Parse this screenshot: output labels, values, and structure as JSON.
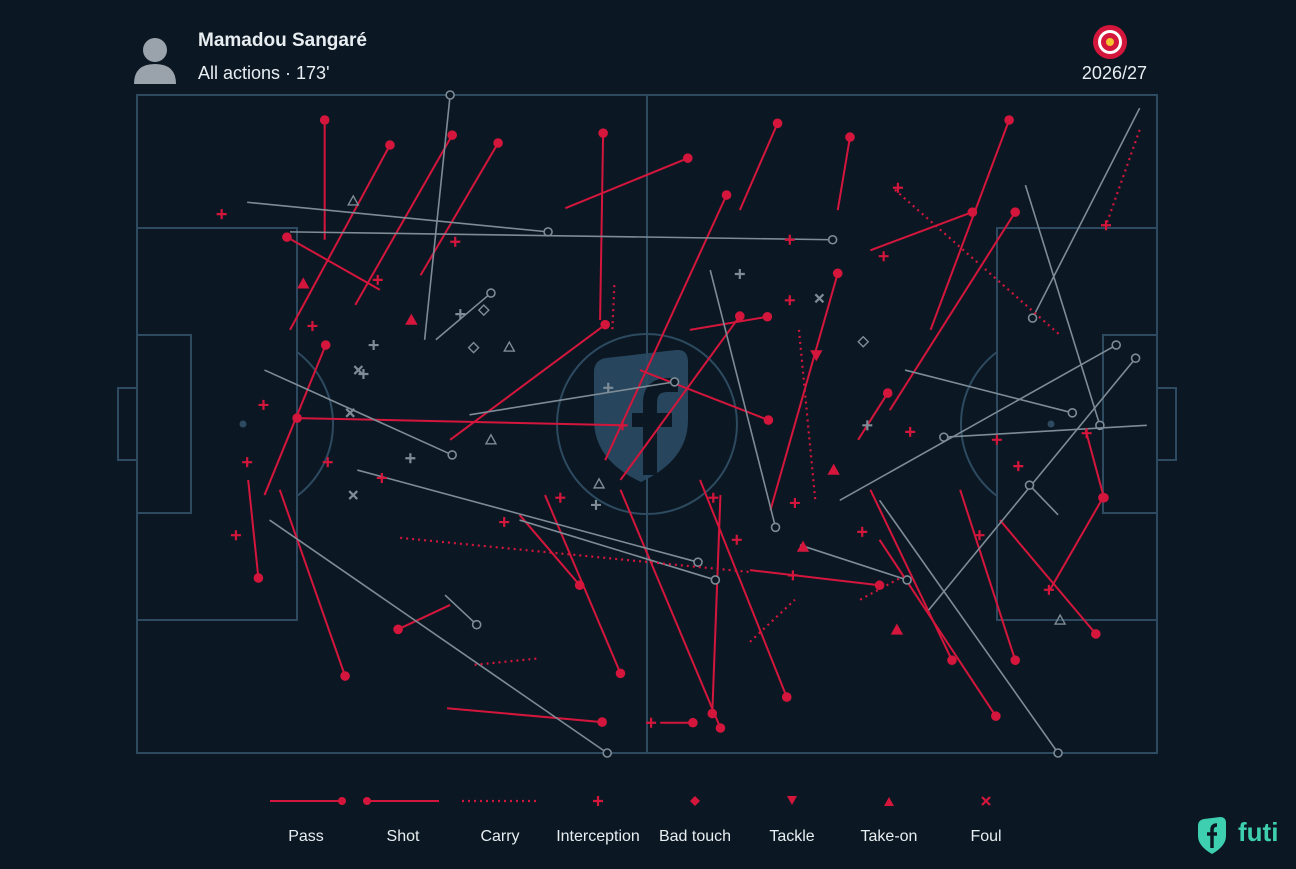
{
  "header": {
    "name": "Mamadou Sangaré",
    "subtitle": "All actions · 173'",
    "season": "2026/27"
  },
  "pitch": {
    "xlim": [
      0,
      100
    ],
    "ylim": [
      0,
      100
    ]
  },
  "colors": {
    "successful": "#d4163c",
    "unsuccessful": "#7e8c97"
  },
  "actions": [
    {
      "type": "pass",
      "x": 18.4,
      "y": 22.0,
      "end_x": 18.4,
      "end_y": 3.8,
      "successful": true
    },
    {
      "type": "pass",
      "x": 15.0,
      "y": 35.7,
      "end_x": 24.8,
      "end_y": 7.6,
      "successful": true
    },
    {
      "type": "pass",
      "x": 21.4,
      "y": 31.9,
      "end_x": 30.9,
      "end_y": 6.1,
      "successful": true
    },
    {
      "type": "pass",
      "x": 27.8,
      "y": 27.4,
      "end_x": 35.4,
      "end_y": 7.3,
      "successful": true
    },
    {
      "type": "pass",
      "x": 45.4,
      "y": 34.2,
      "end_x": 45.7,
      "end_y": 5.8,
      "successful": true
    },
    {
      "type": "pass",
      "x": 42.0,
      "y": 17.2,
      "end_x": 54.0,
      "end_y": 9.6,
      "successful": true
    },
    {
      "type": "pass",
      "x": 59.1,
      "y": 17.5,
      "end_x": 62.8,
      "end_y": 4.3,
      "successful": true
    },
    {
      "type": "pass",
      "x": 68.7,
      "y": 17.5,
      "end_x": 69.9,
      "end_y": 6.4,
      "successful": true
    },
    {
      "type": "pass",
      "x": 77.8,
      "y": 35.7,
      "end_x": 85.5,
      "end_y": 3.8,
      "successful": true
    },
    {
      "type": "pass",
      "x": 71.9,
      "y": 23.6,
      "end_x": 81.9,
      "end_y": 17.8,
      "successful": true
    },
    {
      "type": "pass",
      "x": 23.8,
      "y": 29.6,
      "end_x": 14.7,
      "end_y": 21.6,
      "successful": true
    },
    {
      "type": "pass",
      "x": 12.5,
      "y": 60.8,
      "end_x": 18.5,
      "end_y": 38.0,
      "successful": true
    },
    {
      "type": "pass",
      "x": 48.1,
      "y": 50.2,
      "end_x": 15.7,
      "end_y": 49.1,
      "successful": true
    },
    {
      "type": "pass",
      "x": 30.7,
      "y": 52.4,
      "end_x": 45.9,
      "end_y": 34.9,
      "successful": true
    },
    {
      "type": "pass",
      "x": 10.9,
      "y": 58.5,
      "end_x": 11.9,
      "end_y": 73.4,
      "successful": true
    },
    {
      "type": "pass",
      "x": 14.0,
      "y": 60.0,
      "end_x": 20.4,
      "end_y": 88.3,
      "successful": true
    },
    {
      "type": "pass",
      "x": 30.7,
      "y": 77.5,
      "end_x": 25.6,
      "end_y": 81.2,
      "successful": true
    },
    {
      "type": "pass",
      "x": 30.4,
      "y": 93.2,
      "end_x": 45.6,
      "end_y": 95.3,
      "successful": true
    },
    {
      "type": "pass",
      "x": 51.3,
      "y": 95.4,
      "end_x": 54.5,
      "end_y": 95.4,
      "successful": true
    },
    {
      "type": "pass",
      "x": 40.0,
      "y": 60.8,
      "end_x": 47.4,
      "end_y": 87.9,
      "successful": true
    },
    {
      "type": "pass",
      "x": 47.4,
      "y": 60.0,
      "end_x": 57.2,
      "end_y": 96.2,
      "successful": true
    },
    {
      "type": "pass",
      "x": 55.2,
      "y": 58.5,
      "end_x": 63.7,
      "end_y": 91.5,
      "successful": true
    },
    {
      "type": "pass",
      "x": 54.2,
      "y": 35.7,
      "end_x": 61.8,
      "end_y": 33.7,
      "successful": true
    },
    {
      "type": "pass",
      "x": 57.2,
      "y": 60.8,
      "end_x": 56.4,
      "end_y": 94.0,
      "successful": true
    },
    {
      "type": "pass",
      "x": 60.1,
      "y": 72.2,
      "end_x": 72.8,
      "end_y": 74.5,
      "successful": true
    },
    {
      "type": "pass",
      "x": 71.9,
      "y": 60.0,
      "end_x": 79.9,
      "end_y": 85.9,
      "successful": true
    },
    {
      "type": "pass",
      "x": 72.8,
      "y": 67.6,
      "end_x": 84.2,
      "end_y": 94.4,
      "successful": true
    },
    {
      "type": "pass",
      "x": 80.7,
      "y": 60.0,
      "end_x": 86.1,
      "end_y": 85.9,
      "successful": true
    },
    {
      "type": "pass",
      "x": 84.6,
      "y": 64.6,
      "end_x": 94.0,
      "end_y": 81.9,
      "successful": true
    },
    {
      "type": "pass",
      "x": 93.0,
      "y": 50.9,
      "end_x": 94.8,
      "end_y": 61.2,
      "successful": true
    },
    {
      "type": "pass",
      "x": 89.5,
      "y": 75.2,
      "end_x": 94.7,
      "end_y": 61.2,
      "successful": true
    },
    {
      "type": "pass",
      "x": 73.8,
      "y": 47.9,
      "end_x": 86.1,
      "end_y": 17.8,
      "successful": true
    },
    {
      "type": "pass",
      "x": 70.7,
      "y": 52.4,
      "end_x": 73.6,
      "end_y": 45.3,
      "successful": true
    },
    {
      "type": "pass",
      "x": 37.5,
      "y": 63.8,
      "end_x": 43.4,
      "end_y": 74.5,
      "successful": true
    },
    {
      "type": "pass",
      "x": 45.9,
      "y": 55.5,
      "end_x": 57.8,
      "end_y": 15.2,
      "successful": true
    },
    {
      "type": "pass",
      "x": 49.3,
      "y": 41.8,
      "end_x": 61.9,
      "end_y": 49.4,
      "successful": true
    },
    {
      "type": "pass",
      "x": 47.4,
      "y": 58.5,
      "end_x": 59.1,
      "end_y": 33.6,
      "successful": true
    },
    {
      "type": "pass",
      "x": 62.1,
      "y": 63.1,
      "end_x": 68.7,
      "end_y": 27.1,
      "successful": true
    },
    {
      "type": "pass",
      "x": 28.2,
      "y": 37.2,
      "end_x": 30.7,
      "end_y": 0,
      "successful": false
    },
    {
      "type": "pass",
      "x": 10.8,
      "y": 16.3,
      "end_x": 40.3,
      "end_y": 20.8,
      "successful": false
    },
    {
      "type": "pass",
      "x": 15.0,
      "y": 20.8,
      "end_x": 68.2,
      "end_y": 22.0,
      "successful": false
    },
    {
      "type": "pass",
      "x": 12.5,
      "y": 41.8,
      "end_x": 30.9,
      "end_y": 54.7,
      "successful": false
    },
    {
      "type": "pass",
      "x": 29.3,
      "y": 37.2,
      "end_x": 34.7,
      "end_y": 30.1,
      "successful": false
    },
    {
      "type": "pass",
      "x": 21.6,
      "y": 57.0,
      "end_x": 55.0,
      "end_y": 71.0,
      "successful": false
    },
    {
      "type": "pass",
      "x": 13.0,
      "y": 64.6,
      "end_x": 46.1,
      "end_y": 100,
      "successful": false
    },
    {
      "type": "pass",
      "x": 30.2,
      "y": 76.0,
      "end_x": 33.3,
      "end_y": 80.5,
      "successful": false
    },
    {
      "type": "pass",
      "x": 37.5,
      "y": 64.6,
      "end_x": 56.7,
      "end_y": 73.7,
      "successful": false
    },
    {
      "type": "pass",
      "x": 32.6,
      "y": 48.6,
      "end_x": 52.7,
      "end_y": 43.6,
      "successful": false
    },
    {
      "type": "pass",
      "x": 56.2,
      "y": 26.6,
      "end_x": 62.6,
      "end_y": 65.7,
      "successful": false
    },
    {
      "type": "pass",
      "x": 65.0,
      "y": 68.4,
      "end_x": 75.5,
      "end_y": 73.7,
      "successful": false
    },
    {
      "type": "pass",
      "x": 72.8,
      "y": 61.6,
      "end_x": 90.3,
      "end_y": 100,
      "successful": false
    },
    {
      "type": "pass",
      "x": 98.3,
      "y": 2.0,
      "end_x": 87.8,
      "end_y": 33.9,
      "successful": false
    },
    {
      "type": "pass",
      "x": 87.1,
      "y": 13.7,
      "end_x": 94.4,
      "end_y": 50.2,
      "successful": false
    },
    {
      "type": "pass",
      "x": 77.6,
      "y": 78.3,
      "end_x": 97.9,
      "end_y": 40.0,
      "successful": false
    },
    {
      "type": "pass",
      "x": 68.9,
      "y": 61.6,
      "end_x": 96.0,
      "end_y": 38.0,
      "successful": false
    },
    {
      "type": "pass",
      "x": 75.3,
      "y": 41.8,
      "end_x": 91.7,
      "end_y": 48.3,
      "successful": false
    },
    {
      "type": "pass",
      "x": 90.3,
      "y": 63.8,
      "end_x": 87.5,
      "end_y": 59.3,
      "successful": false
    },
    {
      "type": "pass",
      "x": 99.0,
      "y": 50.2,
      "end_x": 79.1,
      "end_y": 52.0,
      "successful": false
    },
    {
      "type": "carry",
      "x": 74.3,
      "y": 14.4,
      "end_x": 90.5,
      "end_y": 36.5,
      "successful": true
    },
    {
      "type": "carry",
      "x": 98.3,
      "y": 5.3,
      "end_x": 95.0,
      "end_y": 19.8,
      "successful": true
    },
    {
      "type": "carry",
      "x": 25.8,
      "y": 67.3,
      "end_x": 60.1,
      "end_y": 72.5,
      "successful": true
    },
    {
      "type": "carry",
      "x": 33.1,
      "y": 86.6,
      "end_x": 39.5,
      "end_y": 85.6,
      "successful": true
    },
    {
      "type": "carry",
      "x": 46.8,
      "y": 28.9,
      "end_x": 46.6,
      "end_y": 35.7,
      "successful": true
    },
    {
      "type": "carry",
      "x": 64.9,
      "y": 35.7,
      "end_x": 66.5,
      "end_y": 61.6,
      "successful": true
    },
    {
      "type": "carry",
      "x": 60.1,
      "y": 83.1,
      "end_x": 64.5,
      "end_y": 76.7,
      "successful": true
    },
    {
      "type": "carry",
      "x": 70.9,
      "y": 76.7,
      "end_x": 75.3,
      "end_y": 73.0,
      "successful": true
    },
    {
      "type": "interception",
      "x": 8.3,
      "y": 18.1,
      "successful": true
    },
    {
      "type": "interception",
      "x": 31.2,
      "y": 22.3,
      "successful": true
    },
    {
      "type": "interception",
      "x": 23.6,
      "y": 28.1,
      "successful": true
    },
    {
      "type": "interception",
      "x": 17.2,
      "y": 35.1,
      "successful": true
    },
    {
      "type": "interception",
      "x": 12.4,
      "y": 47.1,
      "successful": true
    },
    {
      "type": "interception",
      "x": 10.8,
      "y": 55.8,
      "successful": true
    },
    {
      "type": "interception",
      "x": 9.7,
      "y": 66.9,
      "successful": true
    },
    {
      "type": "interception",
      "x": 18.7,
      "y": 55.8,
      "successful": true
    },
    {
      "type": "interception",
      "x": 24.0,
      "y": 58.2,
      "successful": true
    },
    {
      "type": "interception",
      "x": 36.0,
      "y": 64.9,
      "successful": true
    },
    {
      "type": "interception",
      "x": 41.5,
      "y": 61.2,
      "successful": true
    },
    {
      "type": "interception",
      "x": 56.5,
      "y": 61.2,
      "successful": true
    },
    {
      "type": "interception",
      "x": 58.8,
      "y": 67.6,
      "successful": true
    },
    {
      "type": "interception",
      "x": 64.3,
      "y": 73.0,
      "successful": true
    },
    {
      "type": "interception",
      "x": 64.0,
      "y": 22.0,
      "successful": true
    },
    {
      "type": "interception",
      "x": 64.0,
      "y": 31.2,
      "successful": true
    },
    {
      "type": "interception",
      "x": 73.2,
      "y": 24.5,
      "successful": true
    },
    {
      "type": "interception",
      "x": 74.6,
      "y": 14.1,
      "successful": true
    },
    {
      "type": "interception",
      "x": 95.0,
      "y": 19.8,
      "successful": true
    },
    {
      "type": "interception",
      "x": 75.8,
      "y": 51.2,
      "successful": true
    },
    {
      "type": "interception",
      "x": 84.3,
      "y": 52.4,
      "successful": true
    },
    {
      "type": "interception",
      "x": 86.4,
      "y": 56.4,
      "successful": true
    },
    {
      "type": "interception",
      "x": 93.1,
      "y": 51.4,
      "successful": true
    },
    {
      "type": "interception",
      "x": 82.6,
      "y": 66.9,
      "successful": true
    },
    {
      "type": "interception",
      "x": 89.4,
      "y": 75.2,
      "successful": true
    },
    {
      "type": "interception",
      "x": 71.1,
      "y": 66.4,
      "successful": true
    },
    {
      "type": "interception",
      "x": 64.5,
      "y": 62.0,
      "successful": true
    },
    {
      "type": "interception",
      "x": 50.4,
      "y": 95.4,
      "successful": true
    },
    {
      "type": "interception",
      "x": 47.6,
      "y": 50.2,
      "successful": true
    },
    {
      "type": "interception",
      "x": 59.1,
      "y": 27.2,
      "successful": false
    },
    {
      "type": "interception",
      "x": 31.7,
      "y": 33.3,
      "successful": false
    },
    {
      "type": "interception",
      "x": 23.2,
      "y": 38.0,
      "successful": false
    },
    {
      "type": "interception",
      "x": 22.2,
      "y": 42.4,
      "successful": false
    },
    {
      "type": "interception",
      "x": 26.8,
      "y": 55.2,
      "successful": false
    },
    {
      "type": "interception",
      "x": 46.2,
      "y": 44.5,
      "successful": false
    },
    {
      "type": "interception",
      "x": 45.0,
      "y": 62.3,
      "successful": false
    },
    {
      "type": "interception",
      "x": 71.6,
      "y": 50.2,
      "successful": false
    },
    {
      "type": "bad_touch",
      "x": 34.0,
      "y": 32.7,
      "successful": false
    },
    {
      "type": "bad_touch",
      "x": 33.0,
      "y": 38.4,
      "successful": false
    },
    {
      "type": "bad_touch",
      "x": 71.2,
      "y": 37.5,
      "successful": false
    },
    {
      "type": "tackle",
      "x": 66.6,
      "y": 39.5,
      "successful": true
    },
    {
      "type": "take_on",
      "x": 21.2,
      "y": 16.1,
      "successful": false
    },
    {
      "type": "take_on",
      "x": 36.5,
      "y": 38.3,
      "successful": false
    },
    {
      "type": "take_on",
      "x": 34.7,
      "y": 52.4,
      "successful": false
    },
    {
      "type": "take_on",
      "x": 45.3,
      "y": 59.1,
      "successful": false
    },
    {
      "type": "take_on",
      "x": 90.5,
      "y": 79.8,
      "successful": false
    },
    {
      "type": "take_on",
      "x": 16.3,
      "y": 28.7,
      "successful": true
    },
    {
      "type": "take_on",
      "x": 26.9,
      "y": 34.2,
      "successful": true
    },
    {
      "type": "take_on",
      "x": 68.3,
      "y": 57.0,
      "successful": true
    },
    {
      "type": "take_on",
      "x": 65.3,
      "y": 68.7,
      "successful": true
    },
    {
      "type": "take_on",
      "x": 74.5,
      "y": 81.3,
      "successful": true
    },
    {
      "type": "foul",
      "x": 66.9,
      "y": 30.9,
      "successful": false
    },
    {
      "type": "foul",
      "x": 20.9,
      "y": 48.3,
      "successful": false
    },
    {
      "type": "foul",
      "x": 21.2,
      "y": 60.8,
      "successful": false
    },
    {
      "type": "foul",
      "x": 21.7,
      "y": 41.8,
      "successful": false
    }
  ],
  "legend": [
    "Pass",
    "Shot",
    "Carry",
    "Interception",
    "Bad touch",
    "Tackle",
    "Take-on",
    "Foul"
  ],
  "brand": "futi"
}
